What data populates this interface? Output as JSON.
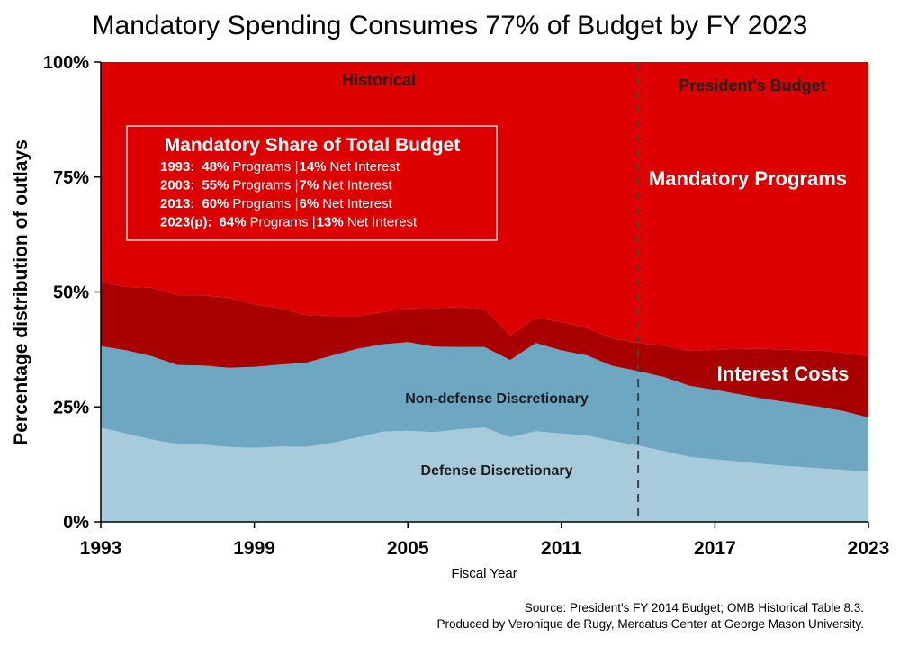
{
  "chart_data": {
    "type": "area",
    "title": "Mandatory Spending Consumes 77% of Budget by FY 2023",
    "xlabel": "Fiscal Year",
    "ylabel": "Percentage distribution of outlays",
    "x_ticks": [
      "1993",
      "1999",
      "2005",
      "2011",
      "2017",
      "2023"
    ],
    "y_ticks": [
      "0%",
      "25%",
      "50%",
      "75%",
      "100%"
    ],
    "xlim": [
      1993,
      2023
    ],
    "ylim": [
      0,
      100
    ],
    "stacked": true,
    "x": [
      1993,
      1994,
      1995,
      1996,
      1997,
      1998,
      1999,
      2000,
      2001,
      2002,
      2003,
      2004,
      2005,
      2006,
      2007,
      2008,
      2009,
      2010,
      2011,
      2012,
      2013,
      2014,
      2015,
      2016,
      2017,
      2018,
      2019,
      2020,
      2021,
      2022,
      2023
    ],
    "series": [
      {
        "name": "Defense Discretionary",
        "color": "#a8cbdb",
        "values": [
          20.5,
          19.2,
          17.9,
          16.9,
          16.8,
          16.3,
          16.1,
          16.4,
          16.3,
          17.1,
          18.3,
          19.6,
          19.8,
          19.5,
          20.1,
          20.5,
          18.4,
          19.7,
          19.2,
          18.8,
          17.6,
          16.6,
          15.4,
          14.1,
          13.6,
          13.1,
          12.5,
          12.1,
          11.7,
          11.3,
          10.9
        ]
      },
      {
        "name": "Non-defense Discretionary",
        "color": "#6da7c2",
        "values": [
          17.7,
          18.1,
          18.1,
          17.2,
          17.2,
          17.2,
          17.6,
          17.8,
          18.3,
          19.0,
          19.3,
          19.0,
          19.3,
          18.6,
          17.9,
          17.5,
          16.8,
          19.2,
          18.1,
          17.4,
          16.3,
          16.2,
          16.1,
          15.5,
          15.1,
          14.6,
          14.2,
          13.8,
          13.4,
          12.8,
          11.8
        ]
      },
      {
        "name": "Interest Costs",
        "color": "#a80000",
        "values": [
          14.0,
          13.8,
          14.9,
          15.2,
          15.3,
          15.2,
          13.6,
          12.3,
          10.4,
          8.7,
          7.2,
          7.0,
          7.3,
          8.4,
          8.7,
          8.3,
          5.3,
          5.5,
          6.2,
          6.0,
          6.0,
          6.1,
          6.8,
          7.6,
          8.8,
          9.9,
          10.9,
          11.5,
          12.2,
          12.7,
          13.3
        ]
      },
      {
        "name": "Mandatory Programs",
        "color": "#dd0000",
        "values": [
          47.8,
          48.9,
          49.1,
          50.7,
          50.7,
          51.3,
          52.7,
          53.5,
          55.0,
          55.2,
          55.2,
          54.4,
          53.6,
          53.5,
          53.3,
          53.7,
          59.5,
          55.6,
          56.5,
          57.8,
          60.1,
          61.1,
          61.7,
          62.8,
          62.5,
          62.4,
          62.4,
          62.6,
          62.7,
          63.2,
          64.0
        ]
      }
    ],
    "annotations": {
      "historical": "Historical",
      "presidents_budget": "President's Budget",
      "divider_year": 2014,
      "mandatory_programs": "Mandatory Programs",
      "interest_costs": "Interest Costs",
      "non_defense": "Non-defense Discretionary",
      "defense": "Defense Discretionary"
    },
    "inset": {
      "title": "Mandatory Share of Total Budget",
      "rows": [
        {
          "year": "1993:",
          "programs": "48%",
          "programs_label": "Programs |",
          "interest": "14%",
          "interest_label": "Net Interest"
        },
        {
          "year": "2003:",
          "programs": "55%",
          "programs_label": "Programs |",
          "interest": "7%",
          "interest_label": "Net Interest"
        },
        {
          "year": "2013:",
          "programs": "60%",
          "programs_label": "Programs |",
          "interest": "6%",
          "interest_label": "Net Interest"
        },
        {
          "year": "2023(p):",
          "programs": "64%",
          "programs_label": "Programs |",
          "interest": "13%",
          "interest_label": "Net Interest"
        }
      ]
    },
    "grid": false,
    "legend": "none"
  },
  "source": {
    "line1": "Source: President's FY 2014 Budget; OMB Historical Table 8.3.",
    "line2": "Produced by Veronique de Rugy, Mercatus Center at George Mason University."
  }
}
